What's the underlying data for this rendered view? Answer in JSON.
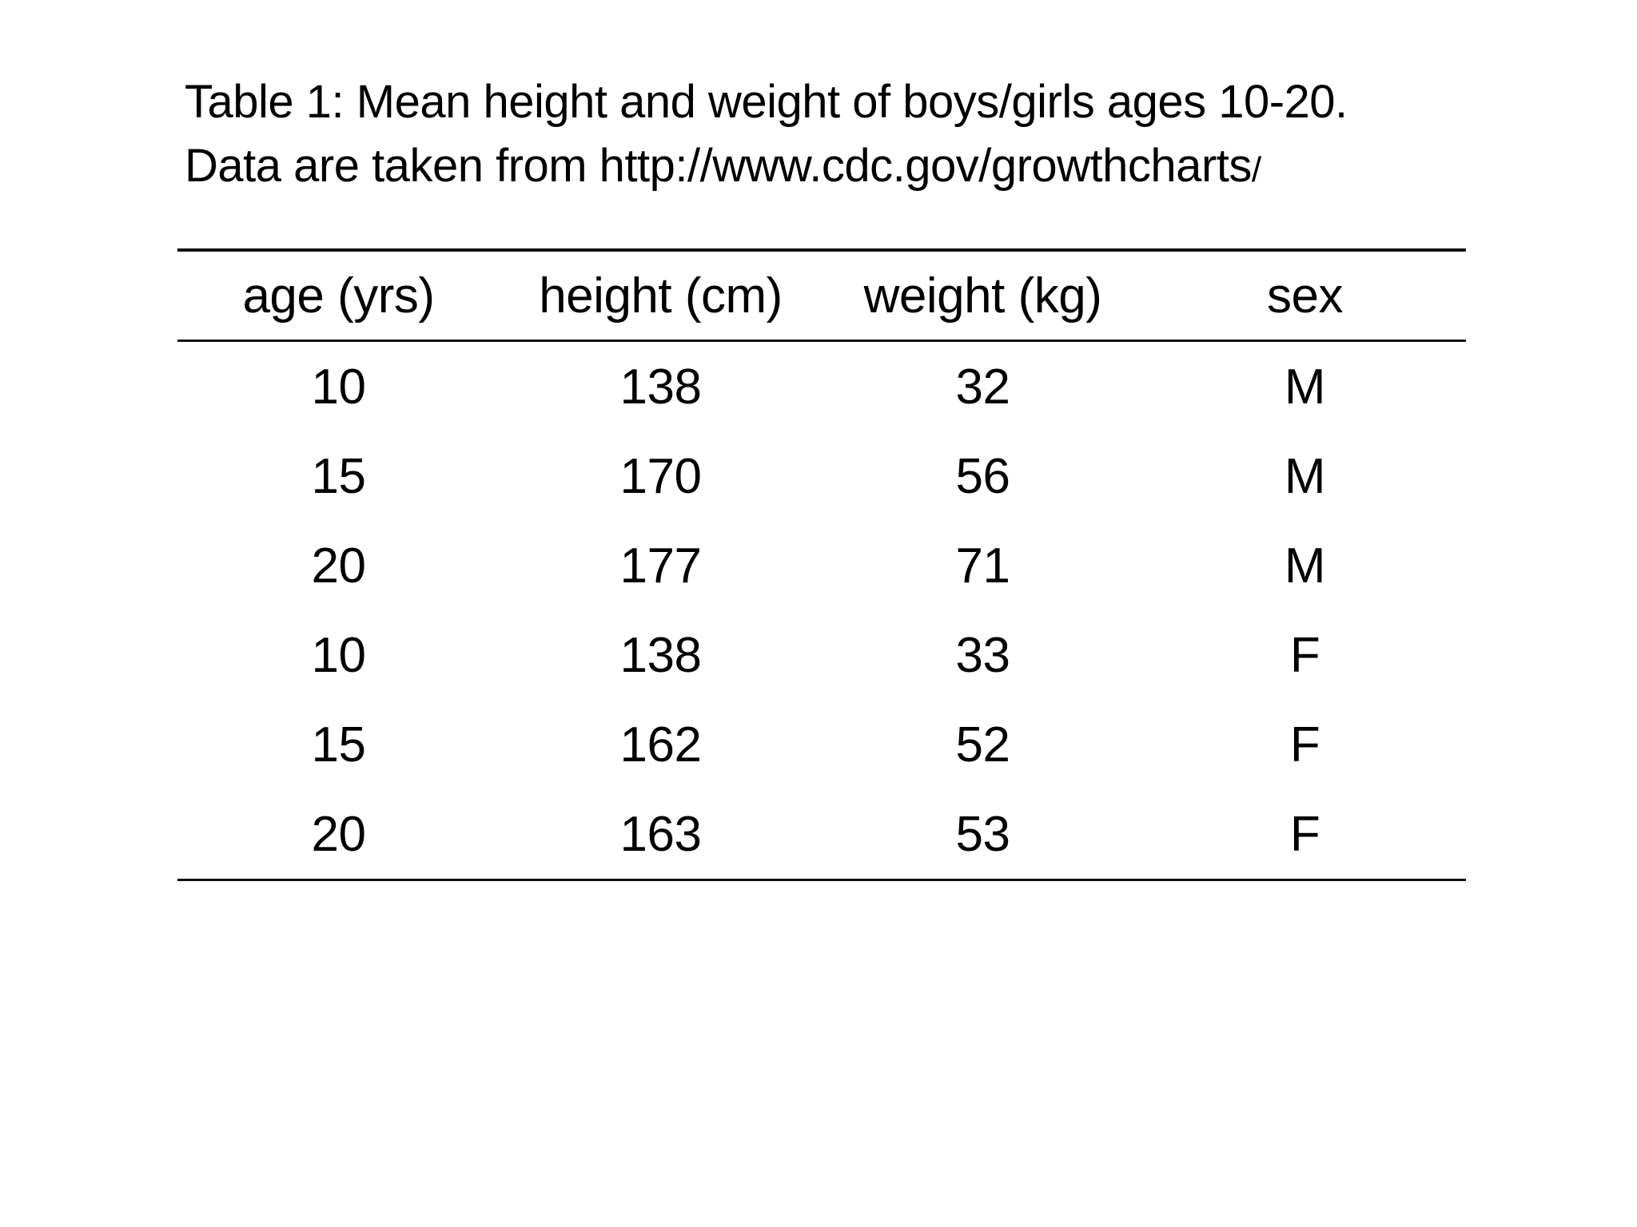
{
  "caption": {
    "line1": "Table 1: Mean height and weight of boys/girls ages 10-20.",
    "line2_main": "Data are taken from http://www.cdc.gov/growthcharts",
    "line2_suffix": "/"
  },
  "table": {
    "columns": [
      "age (yrs)",
      "height (cm)",
      "weight (kg)",
      "sex"
    ],
    "rows": [
      [
        "10",
        "138",
        "32",
        "M"
      ],
      [
        "15",
        "170",
        "56",
        "M"
      ],
      [
        "20",
        "177",
        "71",
        "M"
      ],
      [
        "10",
        "138",
        "33",
        "F"
      ],
      [
        "15",
        "162",
        "52",
        "F"
      ],
      [
        "20",
        "163",
        "53",
        "F"
      ]
    ]
  },
  "chart_data": {
    "type": "table",
    "title": "Table 1: Mean height and weight of boys/girls ages 10-20. Data are taken from http://www.cdc.gov/growthcharts/",
    "columns": [
      "age (yrs)",
      "height (cm)",
      "weight (kg)",
      "sex"
    ],
    "rows": [
      [
        10,
        138,
        32,
        "M"
      ],
      [
        15,
        170,
        56,
        "M"
      ],
      [
        20,
        177,
        71,
        "M"
      ],
      [
        10,
        138,
        33,
        "F"
      ],
      [
        15,
        162,
        52,
        "F"
      ],
      [
        20,
        163,
        53,
        "F"
      ]
    ]
  },
  "colors": {
    "background": "#ffffff",
    "text": "#000000",
    "rule": "#111111"
  }
}
